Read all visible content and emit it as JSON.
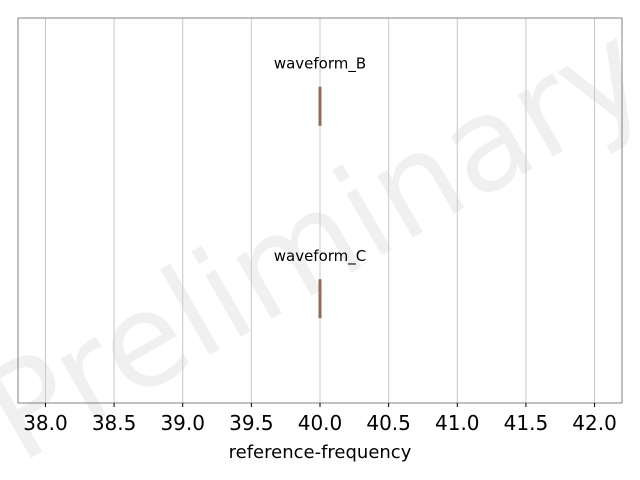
{
  "chart_data": {
    "type": "box",
    "orientation": "horizontal",
    "xlabel": "reference-frequency",
    "ylabel": "",
    "xlim": [
      37.8,
      42.2
    ],
    "xticks": [
      "38.0",
      "38.5",
      "39.0",
      "39.5",
      "40.0",
      "40.5",
      "41.0",
      "41.5",
      "42.0"
    ],
    "grid": "vertical",
    "series": [
      {
        "name": "waveform_B",
        "min": 40.0,
        "q1": 40.0,
        "median": 40.0,
        "q3": 40.0,
        "max": 40.0
      },
      {
        "name": "waveform_C",
        "min": 40.0,
        "q1": 40.0,
        "median": 40.0,
        "q3": 40.0,
        "max": 40.0
      }
    ],
    "box_color": "#f4b183",
    "box_edge_color": "#8c6d5a",
    "watermark": "Preliminary"
  }
}
